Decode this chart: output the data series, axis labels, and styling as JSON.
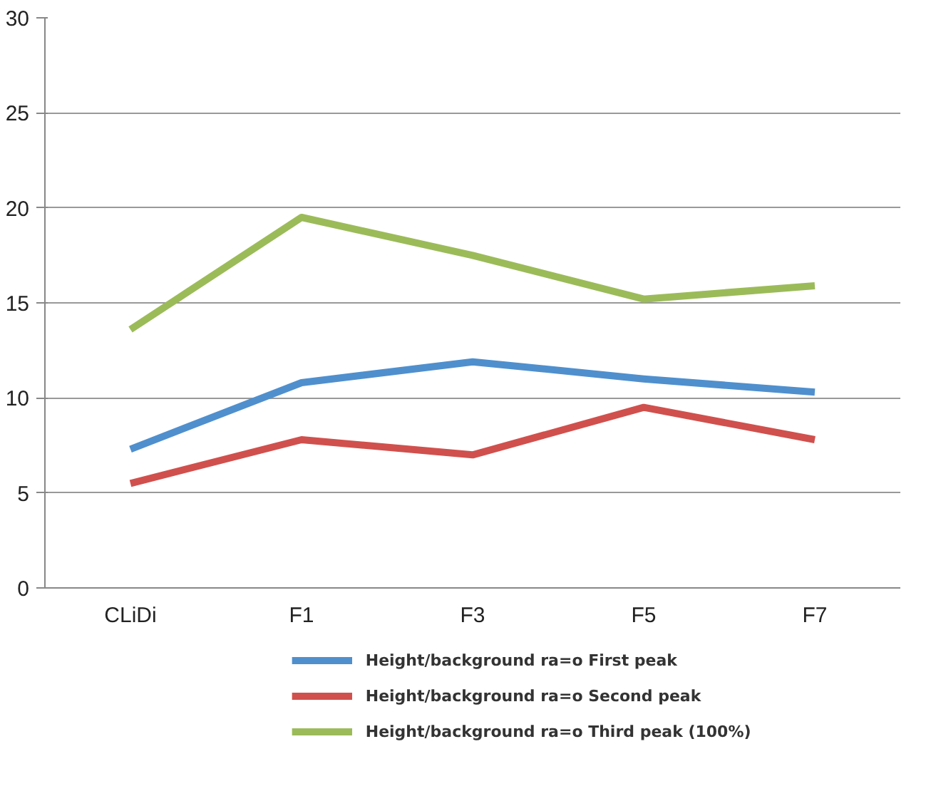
{
  "chart_data": {
    "type": "line",
    "categories": [
      "CLiDi",
      "F1",
      "F3",
      "F5",
      "F7"
    ],
    "series": [
      {
        "name": "Height/background ra=o First peak",
        "color": "#4f8fcd",
        "values": [
          7.3,
          10.8,
          11.9,
          11.0,
          10.3
        ]
      },
      {
        "name": "Height/background ra=o Second peak",
        "color": "#d0504d",
        "values": [
          5.5,
          7.8,
          7.0,
          9.5,
          7.8
        ]
      },
      {
        "name": "Height/background ra=o Third peak (100%)",
        "color": "#9bbb59",
        "values": [
          13.6,
          19.5,
          17.5,
          15.2,
          15.9
        ]
      }
    ],
    "ylim": [
      0,
      30
    ],
    "yticks": [
      0,
      5,
      10,
      15,
      20,
      25,
      30
    ],
    "grid": "y",
    "legend": "bottom",
    "marker": "none",
    "line_style": "solid"
  }
}
